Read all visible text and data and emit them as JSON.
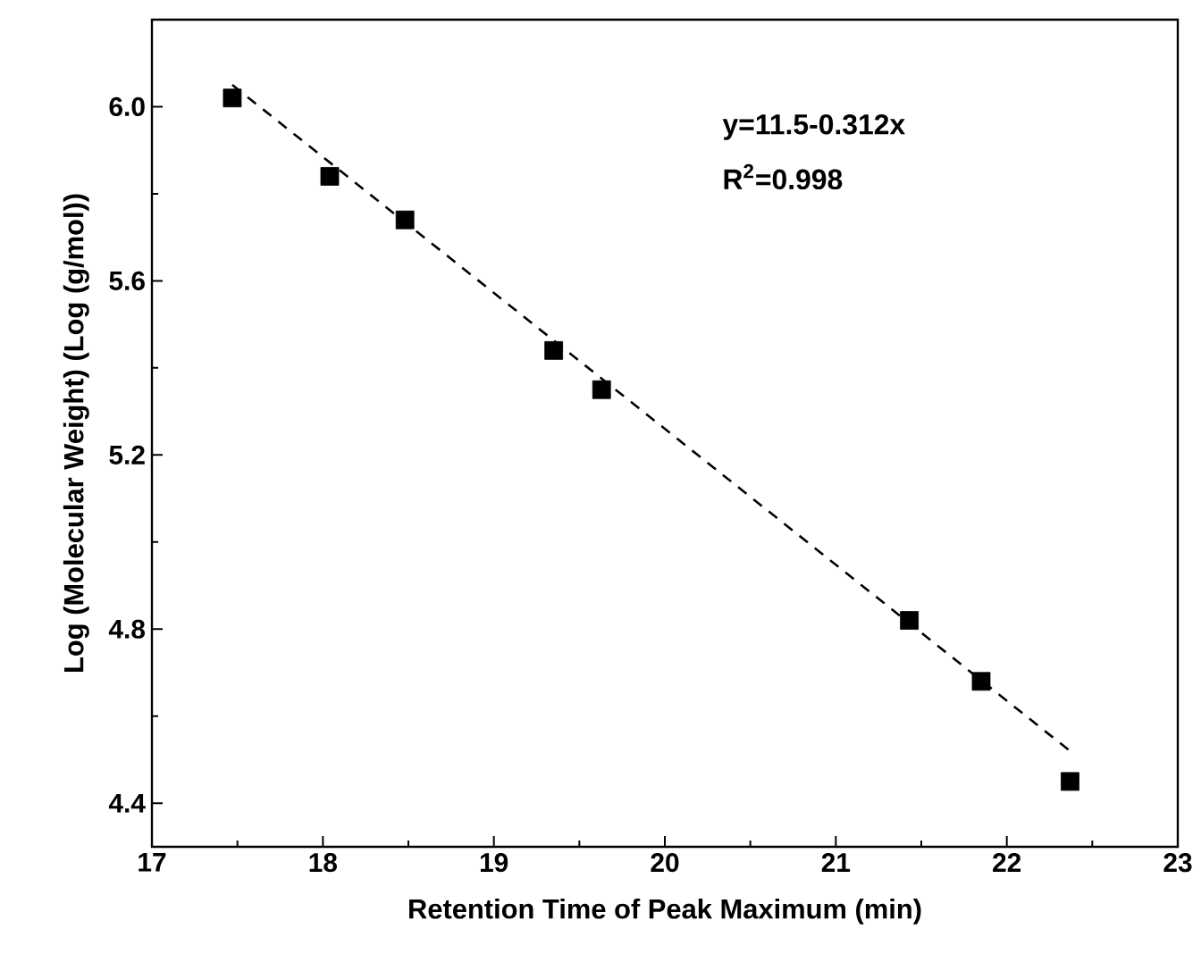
{
  "chart_data": {
    "type": "scatter",
    "xlabel": "Retention Time of Peak Maximum (min)",
    "ylabel": "Log (Molecular Weight) (Log (g/mol))",
    "xlim": [
      17,
      23
    ],
    "ylim": [
      4.3,
      6.2
    ],
    "xticks": [
      17,
      18,
      19,
      20,
      21,
      22,
      23
    ],
    "yticks": [
      {
        "value": 4.4,
        "label": "4.4"
      },
      {
        "value": 4.8,
        "label": "4.8"
      },
      {
        "value": 5.2,
        "label": "5.2"
      },
      {
        "value": 5.6,
        "label": "5.6"
      },
      {
        "value": 6.0,
        "label": "6.0"
      }
    ],
    "annotations": [
      "y=11.5-0.312x",
      "R$^{2}$=0.998"
    ],
    "series": [
      {
        "color": "#000000",
        "marker": "square",
        "x": [
          17.47,
          18.04,
          18.48,
          19.35,
          19.63,
          21.43,
          21.85,
          22.37
        ],
        "values": [
          6.02,
          5.84,
          5.74,
          5.44,
          5.35,
          4.82,
          4.68,
          4.45
        ]
      },
      {
        "type": "line",
        "color": "#000000",
        "marker": "none",
        "line_style": "dashed",
        "x": [
          17.47,
          22.37
        ],
        "values": [
          6.05,
          4.52
        ]
      }
    ]
  }
}
